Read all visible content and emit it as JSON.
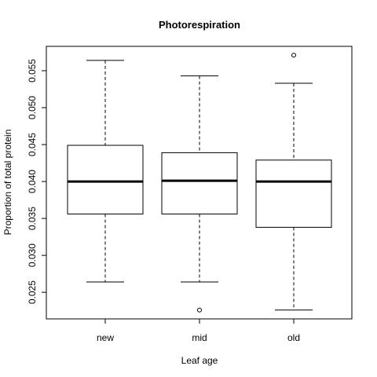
{
  "chart_data": {
    "type": "boxplot",
    "title": "Photorespiration",
    "xlabel": "Leaf age",
    "ylabel": "Proportion of total protein",
    "categories": [
      "new",
      "mid",
      "old"
    ],
    "boxes": [
      {
        "category": "new",
        "whisker_low": 0.0264,
        "q1": 0.0356,
        "median": 0.04,
        "q3": 0.0449,
        "whisker_high": 0.0564,
        "outliers": []
      },
      {
        "category": "mid",
        "whisker_low": 0.0264,
        "q1": 0.0356,
        "median": 0.0401,
        "q3": 0.0439,
        "whisker_high": 0.0543,
        "outliers": [
          0.0226
        ]
      },
      {
        "category": "old",
        "whisker_low": 0.0226,
        "q1": 0.0338,
        "median": 0.04,
        "q3": 0.0429,
        "whisker_high": 0.0533,
        "outliers": [
          0.0571
        ]
      }
    ],
    "yticks": [
      0.025,
      0.03,
      0.035,
      0.04,
      0.045,
      0.05,
      0.055
    ],
    "ytick_labels": [
      "0.025",
      "0.030",
      "0.035",
      "0.040",
      "0.045",
      "0.050",
      "0.055"
    ],
    "ylim": [
      0.0214,
      0.0583
    ],
    "grid": false
  }
}
